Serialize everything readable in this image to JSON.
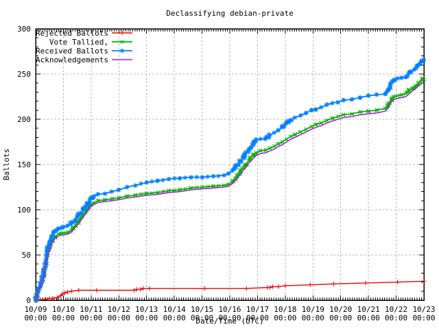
{
  "window": {
    "title": "Declassifying debian-private"
  },
  "chart_data": {
    "type": "line",
    "title": "Declassifying debian-private",
    "xlabel": "Date/Time (UTC)",
    "ylabel": "Ballots",
    "xlim": [
      0,
      14
    ],
    "ylim": [
      0,
      300
    ],
    "y_ticks": [
      0,
      50,
      100,
      150,
      200,
      250,
      300
    ],
    "x_tick_dates": [
      "10/09",
      "10/10",
      "10/11",
      "10/12",
      "10/13",
      "10/14",
      "10/15",
      "10/16",
      "10/17",
      "10/18",
      "10/19",
      "10/20",
      "10/21",
      "10/22",
      "10/23"
    ],
    "x_tick_time": "00:00",
    "x_minor_ticks_per_day": 12,
    "y_minor_tick_step": 10,
    "grid": true,
    "grid_color": "#b0b0b0",
    "text_color": "#000000",
    "background": "#ffffff",
    "legend_position": "top-left",
    "series": [
      {
        "name": "Rejected Ballots",
        "color": "#ee0000",
        "marker": "plus",
        "density": "sparse",
        "line_width": 1.4,
        "points": [
          [
            0,
            0
          ],
          [
            0.35,
            1
          ],
          [
            0.5,
            2
          ],
          [
            0.62,
            2
          ],
          [
            0.78,
            3
          ],
          [
            0.9,
            5
          ],
          [
            0.97,
            7
          ],
          [
            1.05,
            8
          ],
          [
            1.15,
            9
          ],
          [
            1.3,
            10
          ],
          [
            1.55,
            11
          ],
          [
            2.2,
            11
          ],
          [
            3.55,
            11
          ],
          [
            3.65,
            12
          ],
          [
            3.78,
            12
          ],
          [
            3.88,
            13
          ],
          [
            4.1,
            13
          ],
          [
            6.1,
            13
          ],
          [
            7.6,
            13
          ],
          [
            8.35,
            14
          ],
          [
            8.45,
            14
          ],
          [
            8.55,
            15
          ],
          [
            8.75,
            15
          ],
          [
            9.0,
            16
          ],
          [
            9.9,
            17
          ],
          [
            10.75,
            18
          ],
          [
            11.9,
            19
          ],
          [
            13.05,
            20
          ],
          [
            14,
            21
          ]
        ]
      },
      {
        "name": "Vote Tallied,",
        "color": "#00b400",
        "marker": "cross",
        "density": "dense",
        "line_width": 1.8,
        "points": [
          [
            0,
            0
          ],
          [
            0.03,
            3
          ],
          [
            0.06,
            8
          ],
          [
            0.09,
            12
          ],
          [
            0.13,
            14
          ],
          [
            0.2,
            17
          ],
          [
            0.28,
            26
          ],
          [
            0.36,
            39
          ],
          [
            0.44,
            51
          ],
          [
            0.52,
            60
          ],
          [
            0.62,
            67
          ],
          [
            0.72,
            71
          ],
          [
            0.82,
            73
          ],
          [
            0.92,
            74
          ],
          [
            1.0,
            74
          ],
          [
            1.15,
            75
          ],
          [
            1.28,
            77
          ],
          [
            1.42,
            82
          ],
          [
            1.55,
            87
          ],
          [
            1.7,
            93
          ],
          [
            1.85,
            100
          ],
          [
            2.0,
            106
          ],
          [
            2.1,
            108
          ],
          [
            2.25,
            110
          ],
          [
            2.5,
            111
          ],
          [
            2.75,
            112
          ],
          [
            3.0,
            113
          ],
          [
            3.3,
            115
          ],
          [
            3.6,
            116
          ],
          [
            4.0,
            118
          ],
          [
            4.4,
            119
          ],
          [
            4.8,
            121
          ],
          [
            5.2,
            122
          ],
          [
            5.6,
            124
          ],
          [
            6.0,
            125
          ],
          [
            6.4,
            126
          ],
          [
            6.8,
            127
          ],
          [
            6.95,
            128
          ],
          [
            7.1,
            131
          ],
          [
            7.25,
            137
          ],
          [
            7.4,
            143
          ],
          [
            7.55,
            149
          ],
          [
            7.7,
            155
          ],
          [
            7.85,
            160
          ],
          [
            7.95,
            163
          ],
          [
            8.1,
            165
          ],
          [
            8.3,
            166
          ],
          [
            8.45,
            168
          ],
          [
            8.6,
            170
          ],
          [
            8.75,
            173
          ],
          [
            8.9,
            175
          ],
          [
            9.05,
            178
          ],
          [
            9.2,
            181
          ],
          [
            9.35,
            183
          ],
          [
            9.55,
            186
          ],
          [
            9.75,
            189
          ],
          [
            9.95,
            192
          ],
          [
            10.1,
            194
          ],
          [
            10.3,
            196
          ],
          [
            10.5,
            199
          ],
          [
            10.7,
            201
          ],
          [
            10.9,
            203
          ],
          [
            11.1,
            205
          ],
          [
            11.4,
            206
          ],
          [
            11.7,
            208
          ],
          [
            12.0,
            209
          ],
          [
            12.3,
            210
          ],
          [
            12.6,
            212
          ],
          [
            12.72,
            216
          ],
          [
            12.82,
            222
          ],
          [
            12.92,
            225
          ],
          [
            13.05,
            226
          ],
          [
            13.2,
            227
          ],
          [
            13.35,
            228
          ],
          [
            13.5,
            232
          ],
          [
            13.65,
            236
          ],
          [
            13.8,
            240
          ],
          [
            13.9,
            242
          ],
          [
            14,
            245
          ]
        ]
      },
      {
        "name": "Received Ballots",
        "color": "#0080ff",
        "marker": "star",
        "density": "dense",
        "line_width": 1.8,
        "points": [
          [
            0,
            0
          ],
          [
            0.03,
            4
          ],
          [
            0.06,
            10
          ],
          [
            0.09,
            14
          ],
          [
            0.13,
            16
          ],
          [
            0.2,
            20
          ],
          [
            0.28,
            30
          ],
          [
            0.36,
            44
          ],
          [
            0.44,
            57
          ],
          [
            0.52,
            66
          ],
          [
            0.62,
            73
          ],
          [
            0.72,
            77
          ],
          [
            0.82,
            79
          ],
          [
            0.92,
            80
          ],
          [
            1.0,
            81
          ],
          [
            1.15,
            82
          ],
          [
            1.28,
            84
          ],
          [
            1.42,
            89
          ],
          [
            1.55,
            94
          ],
          [
            1.7,
            100
          ],
          [
            1.85,
            106
          ],
          [
            2.0,
            112
          ],
          [
            2.1,
            115
          ],
          [
            2.25,
            117
          ],
          [
            2.5,
            118
          ],
          [
            2.75,
            120
          ],
          [
            3.0,
            122
          ],
          [
            3.3,
            125
          ],
          [
            3.6,
            127
          ],
          [
            4.0,
            130
          ],
          [
            4.4,
            132
          ],
          [
            4.8,
            134
          ],
          [
            5.2,
            135
          ],
          [
            5.6,
            136
          ],
          [
            6.0,
            136
          ],
          [
            6.4,
            137
          ],
          [
            6.8,
            138
          ],
          [
            6.95,
            140
          ],
          [
            7.1,
            143
          ],
          [
            7.25,
            149
          ],
          [
            7.4,
            155
          ],
          [
            7.55,
            161
          ],
          [
            7.7,
            168
          ],
          [
            7.85,
            174
          ],
          [
            7.95,
            177
          ],
          [
            8.1,
            178
          ],
          [
            8.3,
            178
          ],
          [
            8.45,
            182
          ],
          [
            8.6,
            185
          ],
          [
            8.75,
            188
          ],
          [
            8.9,
            191
          ],
          [
            9.05,
            195
          ],
          [
            9.2,
            199
          ],
          [
            9.35,
            202
          ],
          [
            9.55,
            204
          ],
          [
            9.75,
            207
          ],
          [
            9.95,
            210
          ],
          [
            10.1,
            211
          ],
          [
            10.3,
            213
          ],
          [
            10.5,
            216
          ],
          [
            10.7,
            218
          ],
          [
            10.9,
            219
          ],
          [
            11.1,
            221
          ],
          [
            11.4,
            222
          ],
          [
            11.7,
            224
          ],
          [
            12.0,
            226
          ],
          [
            12.3,
            227
          ],
          [
            12.6,
            228
          ],
          [
            12.72,
            232
          ],
          [
            12.82,
            239
          ],
          [
            12.92,
            244
          ],
          [
            13.05,
            245
          ],
          [
            13.2,
            246
          ],
          [
            13.35,
            247
          ],
          [
            13.5,
            251
          ],
          [
            13.65,
            256
          ],
          [
            13.8,
            260
          ],
          [
            13.9,
            263
          ],
          [
            14,
            266
          ]
        ]
      },
      {
        "name": "Acknowledgements",
        "color": "#aa22cc",
        "marker": "none",
        "density": "sparse",
        "line_width": 1.6,
        "points": [
          [
            0,
            0
          ],
          [
            0.03,
            2
          ],
          [
            0.06,
            7
          ],
          [
            0.09,
            11
          ],
          [
            0.13,
            13
          ],
          [
            0.2,
            16
          ],
          [
            0.28,
            24
          ],
          [
            0.36,
            37
          ],
          [
            0.44,
            49
          ],
          [
            0.52,
            58
          ],
          [
            0.62,
            65
          ],
          [
            0.72,
            69
          ],
          [
            0.82,
            71
          ],
          [
            0.92,
            72
          ],
          [
            1.0,
            72
          ],
          [
            1.15,
            73
          ],
          [
            1.28,
            75
          ],
          [
            1.42,
            80
          ],
          [
            1.55,
            85
          ],
          [
            1.7,
            91
          ],
          [
            1.85,
            98
          ],
          [
            2.0,
            104
          ],
          [
            2.1,
            106
          ],
          [
            2.25,
            108
          ],
          [
            2.5,
            109
          ],
          [
            2.75,
            110
          ],
          [
            3.0,
            111
          ],
          [
            3.3,
            113
          ],
          [
            3.6,
            114
          ],
          [
            4.0,
            116
          ],
          [
            4.4,
            117
          ],
          [
            4.8,
            119
          ],
          [
            5.2,
            120
          ],
          [
            5.6,
            122
          ],
          [
            6.0,
            123
          ],
          [
            6.4,
            124
          ],
          [
            6.8,
            125
          ],
          [
            6.95,
            126
          ],
          [
            7.1,
            129
          ],
          [
            7.25,
            134
          ],
          [
            7.4,
            140
          ],
          [
            7.55,
            146
          ],
          [
            7.7,
            152
          ],
          [
            7.85,
            157
          ],
          [
            7.95,
            160
          ],
          [
            8.1,
            162
          ],
          [
            8.3,
            163
          ],
          [
            8.45,
            165
          ],
          [
            8.6,
            167
          ],
          [
            8.75,
            170
          ],
          [
            8.9,
            172
          ],
          [
            9.05,
            175
          ],
          [
            9.2,
            178
          ],
          [
            9.35,
            180
          ],
          [
            9.55,
            183
          ],
          [
            9.75,
            186
          ],
          [
            9.95,
            189
          ],
          [
            10.1,
            191
          ],
          [
            10.3,
            193
          ],
          [
            10.5,
            196
          ],
          [
            10.7,
            198
          ],
          [
            10.9,
            200
          ],
          [
            11.1,
            202
          ],
          [
            11.4,
            203
          ],
          [
            11.7,
            205
          ],
          [
            12.0,
            206
          ],
          [
            12.3,
            207
          ],
          [
            12.6,
            209
          ],
          [
            12.72,
            213
          ],
          [
            12.82,
            219
          ],
          [
            12.92,
            222
          ],
          [
            13.05,
            223
          ],
          [
            13.2,
            224
          ],
          [
            13.35,
            225
          ],
          [
            13.5,
            229
          ],
          [
            13.65,
            233
          ],
          [
            13.8,
            237
          ],
          [
            13.9,
            239
          ],
          [
            14,
            241
          ]
        ]
      }
    ]
  }
}
